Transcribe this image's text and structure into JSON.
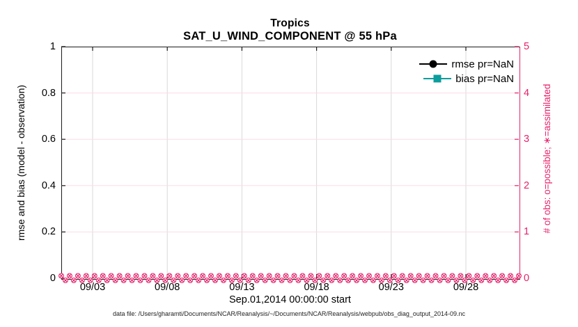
{
  "colors": {
    "accent_pink": "#e5226a",
    "teal": "#0d9d9d",
    "axis_black": "#1a1a1a",
    "grid_gray": "#d9d9d9",
    "grid_pink": "#fbdce8"
  },
  "figure": {
    "footer": "data file: /Users/gharamti/Documents/NCAR/Reanalysis/~/Documents/NCAR/Reanalysis/webpub/obs_diag_output_2014-09.nc"
  },
  "chart_data": {
    "type": "line",
    "title": "Tropics",
    "subtitle": "SAT_U_WIND_COMPONENT @ 55 hPa",
    "xlabel": "Sep.01,2014 00:00:00 start",
    "ylabel_left": "rmse and bias (model - observation)",
    "ylabel_right": "# of obs: o=possible; ∗=assimilated",
    "x_ticks": [
      "09/03",
      "09/08",
      "09/13",
      "09/18",
      "09/23",
      "09/28"
    ],
    "yticks_left": [
      "0",
      "0.2",
      "0.4",
      "0.6",
      "0.8",
      "1"
    ],
    "ylim_left": [
      0,
      1
    ],
    "yticks_right": [
      "0",
      "1",
      "2",
      "3",
      "4",
      "5"
    ],
    "ylim_right": [
      0,
      5
    ],
    "grid": true,
    "legend_position": "top-right-inside",
    "series": [
      {
        "name": "rmse pr=NaN",
        "color": "#000000",
        "marker": "filled-circle",
        "line": "solid",
        "values": "NaN (no curve plotted)"
      },
      {
        "name": "bias pr=NaN",
        "color": "#0d9d9d",
        "marker": "filled-square",
        "line": "solid",
        "values": "NaN (no curve plotted)"
      },
      {
        "name": "# of obs possible (o markers, right axis)",
        "color": "#e5226a",
        "marker": "circle-outline",
        "value_constant": 0
      },
      {
        "name": "# of obs assimilated (x markers, right axis)",
        "color": "#e5226a",
        "marker": "x-cross",
        "value_constant": 0
      }
    ]
  }
}
